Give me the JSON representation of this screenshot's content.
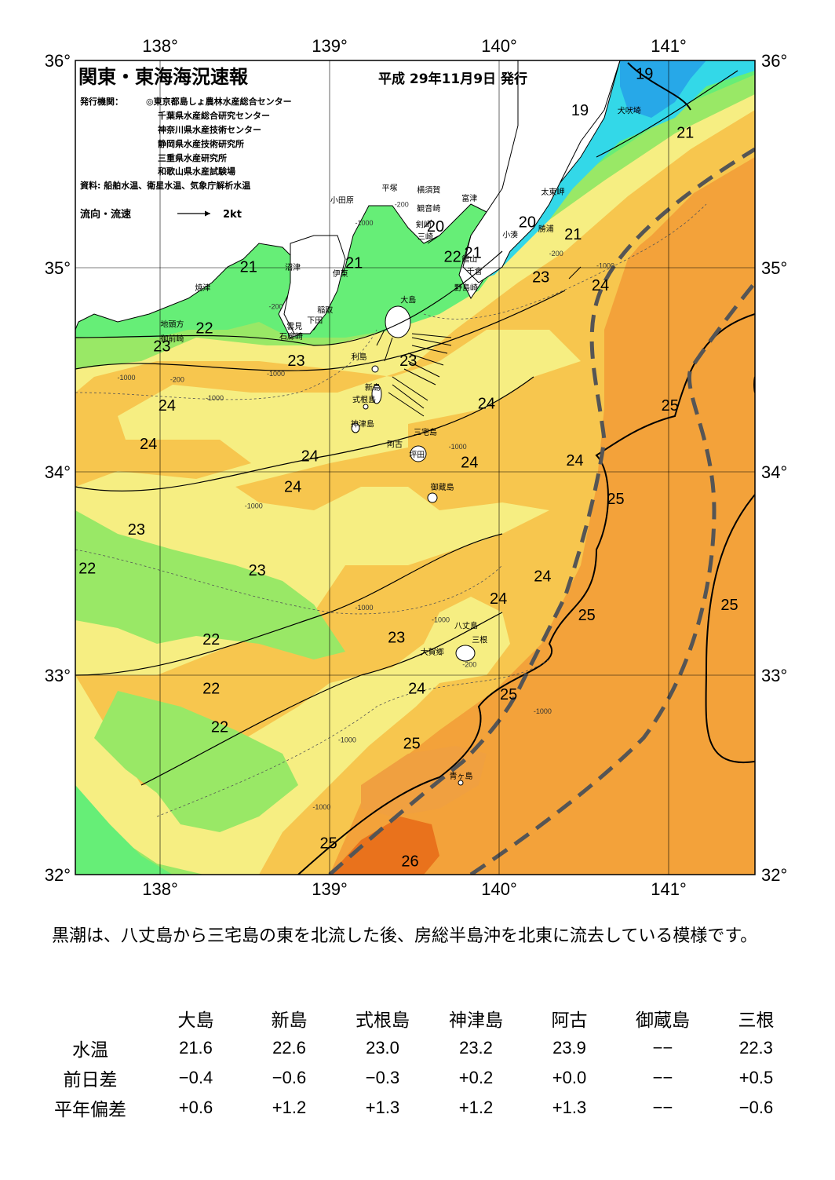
{
  "header": {
    "title": "関東・東海海況速報",
    "date": "平成 29年11月9日 発行",
    "issuer_label": "発行機関：",
    "issuers": [
      "◎東京都島しょ農林水産総合センター",
      "千葉県水産総合研究センター",
      "神奈川県水産技術センター",
      "静岡県水産技術研究所",
      "三重県水産研究所",
      "和歌山県水産試験場"
    ],
    "source": "資料: 船舶水温、衛星水温、気象庁解析水温",
    "legend_label": "流向・流速",
    "legend_speed": "2kt"
  },
  "axes": {
    "lon": [
      "138°",
      "139°",
      "140°",
      "141°"
    ],
    "lat": [
      "36°",
      "35°",
      "34°",
      "33°",
      "32°"
    ]
  },
  "isotherm_labels": [
    {
      "text": "19",
      "lon": 140.85,
      "lat": 35.91
    },
    {
      "text": "19",
      "lon": 140.47,
      "lat": 35.73
    },
    {
      "text": "21",
      "lon": 141.09,
      "lat": 35.62
    },
    {
      "text": "20",
      "lon": 139.62,
      "lat": 35.16
    },
    {
      "text": "20",
      "lon": 140.16,
      "lat": 35.18
    },
    {
      "text": "21",
      "lon": 140.43,
      "lat": 35.12
    },
    {
      "text": "22",
      "lon": 139.72,
      "lat": 35.01
    },
    {
      "text": "21",
      "lon": 139.84,
      "lat": 35.03
    },
    {
      "text": "21",
      "lon": 139.14,
      "lat": 34.98
    },
    {
      "text": "21",
      "lon": 138.52,
      "lat": 34.96
    },
    {
      "text": "23",
      "lon": 140.24,
      "lat": 34.91
    },
    {
      "text": "24",
      "lon": 140.59,
      "lat": 34.87
    },
    {
      "text": "22",
      "lon": 138.26,
      "lat": 34.66
    },
    {
      "text": "23",
      "lon": 138.01,
      "lat": 34.57
    },
    {
      "text": "23",
      "lon": 138.8,
      "lat": 34.5
    },
    {
      "text": "23",
      "lon": 139.46,
      "lat": 34.5
    },
    {
      "text": "24",
      "lon": 138.04,
      "lat": 34.28
    },
    {
      "text": "24",
      "lon": 139.92,
      "lat": 34.29
    },
    {
      "text": "25",
      "lon": 141.0,
      "lat": 34.28
    },
    {
      "text": "24",
      "lon": 137.93,
      "lat": 34.09
    },
    {
      "text": "24",
      "lon": 138.88,
      "lat": 34.03
    },
    {
      "text": "24",
      "lon": 139.82,
      "lat": 34.0
    },
    {
      "text": "24",
      "lon": 140.44,
      "lat": 34.01
    },
    {
      "text": "24",
      "lon": 138.78,
      "lat": 33.88
    },
    {
      "text": "25",
      "lon": 140.68,
      "lat": 33.82
    },
    {
      "text": "23",
      "lon": 137.86,
      "lat": 33.67
    },
    {
      "text": "22",
      "lon": 137.57,
      "lat": 33.48
    },
    {
      "text": "23",
      "lon": 138.57,
      "lat": 33.47
    },
    {
      "text": "24",
      "lon": 140.25,
      "lat": 33.44
    },
    {
      "text": "24",
      "lon": 139.99,
      "lat": 33.33
    },
    {
      "text": "25",
      "lon": 140.51,
      "lat": 33.25
    },
    {
      "text": "25",
      "lon": 141.35,
      "lat": 33.3
    },
    {
      "text": "23",
      "lon": 139.39,
      "lat": 33.14
    },
    {
      "text": "22",
      "lon": 138.3,
      "lat": 33.13
    },
    {
      "text": "22",
      "lon": 138.3,
      "lat": 32.89
    },
    {
      "text": "24",
      "lon": 139.51,
      "lat": 32.89
    },
    {
      "text": "25",
      "lon": 140.05,
      "lat": 32.86
    },
    {
      "text": "22",
      "lon": 138.35,
      "lat": 32.7
    },
    {
      "text": "25",
      "lon": 139.48,
      "lat": 32.62
    },
    {
      "text": "25",
      "lon": 138.99,
      "lat": 32.13
    },
    {
      "text": "26",
      "lon": 139.47,
      "lat": 32.04
    }
  ],
  "place_labels": [
    {
      "text": "犬吠埼",
      "lon": 140.76,
      "lat": 35.74
    },
    {
      "text": "太東岬",
      "lon": 140.31,
      "lat": 35.34
    },
    {
      "text": "勝浦",
      "lon": 140.27,
      "lat": 35.16
    },
    {
      "text": "小湊",
      "lon": 140.06,
      "lat": 35.13
    },
    {
      "text": "富津",
      "lon": 139.82,
      "lat": 35.31
    },
    {
      "text": "横須賀",
      "lon": 139.58,
      "lat": 35.35
    },
    {
      "text": "平塚",
      "lon": 139.35,
      "lat": 35.36
    },
    {
      "text": "小田原",
      "lon": 139.07,
      "lat": 35.3
    },
    {
      "text": "観音崎",
      "lon": 139.58,
      "lat": 35.26
    },
    {
      "text": "剣崎",
      "lon": 139.55,
      "lat": 35.18
    },
    {
      "text": "三崎",
      "lon": 139.56,
      "lat": 35.12
    },
    {
      "text": "館山",
      "lon": 139.82,
      "lat": 35.01
    },
    {
      "text": "千倉",
      "lon": 139.85,
      "lat": 34.95
    },
    {
      "text": "野島崎",
      "lon": 139.8,
      "lat": 34.87
    },
    {
      "text": "沼津",
      "lon": 138.78,
      "lat": 34.97
    },
    {
      "text": "伊東",
      "lon": 139.06,
      "lat": 34.94
    },
    {
      "text": "焼津",
      "lon": 138.25,
      "lat": 34.87
    },
    {
      "text": "稲取",
      "lon": 138.97,
      "lat": 34.76
    },
    {
      "text": "下田",
      "lon": 138.91,
      "lat": 34.71
    },
    {
      "text": "雲見",
      "lon": 138.79,
      "lat": 34.68
    },
    {
      "text": "石廊崎",
      "lon": 138.77,
      "lat": 34.63
    },
    {
      "text": "地頭方",
      "lon": 138.07,
      "lat": 34.69
    },
    {
      "text": "御前崎",
      "lon": 138.07,
      "lat": 34.62
    },
    {
      "text": "大島",
      "lon": 139.46,
      "lat": 34.81
    },
    {
      "text": "利島",
      "lon": 139.17,
      "lat": 34.53
    },
    {
      "text": "新島",
      "lon": 139.25,
      "lat": 34.38
    },
    {
      "text": "式根島",
      "lon": 139.2,
      "lat": 34.32
    },
    {
      "text": "神津島",
      "lon": 139.19,
      "lat": 34.2
    },
    {
      "text": "阿古",
      "lon": 139.38,
      "lat": 34.1
    },
    {
      "text": "三宅島",
      "lon": 139.56,
      "lat": 34.16
    },
    {
      "text": "坪田",
      "lon": 139.51,
      "lat": 34.05
    },
    {
      "text": "御蔵島",
      "lon": 139.66,
      "lat": 33.89
    },
    {
      "text": "八丈島",
      "lon": 139.8,
      "lat": 33.21
    },
    {
      "text": "三根",
      "lon": 139.88,
      "lat": 33.14
    },
    {
      "text": "大賀郷",
      "lon": 139.6,
      "lat": 33.08
    },
    {
      "text": "青ヶ島",
      "lon": 139.77,
      "lat": 32.47
    }
  ],
  "depth_labels": [
    {
      "text": "-200",
      "lon": 139.42,
      "lat": 35.28
    },
    {
      "text": "-1000",
      "lon": 139.2,
      "lat": 35.19
    },
    {
      "text": "-200",
      "lon": 140.33,
      "lat": 35.04
    },
    {
      "text": "-1000",
      "lon": 140.62,
      "lat": 34.98
    },
    {
      "text": "-200",
      "lon": 138.68,
      "lat": 34.78
    },
    {
      "text": "-1000",
      "lon": 138.68,
      "lat": 34.45
    },
    {
      "text": "-200",
      "lon": 138.1,
      "lat": 34.42
    },
    {
      "text": "-1000",
      "lon": 137.8,
      "lat": 34.43
    },
    {
      "text": "-1000",
      "lon": 138.32,
      "lat": 34.33
    },
    {
      "text": "-1000",
      "lon": 139.75,
      "lat": 34.09
    },
    {
      "text": "-1000",
      "lon": 138.55,
      "lat": 33.8
    },
    {
      "text": "-1000",
      "lon": 139.2,
      "lat": 33.3
    },
    {
      "text": "-1000",
      "lon": 139.65,
      "lat": 33.24
    },
    {
      "text": "-200",
      "lon": 139.82,
      "lat": 33.02
    },
    {
      "text": "-1000",
      "lon": 140.25,
      "lat": 32.79
    },
    {
      "text": "-1000",
      "lon": 139.1,
      "lat": 32.65
    },
    {
      "text": "-1000",
      "lon": 138.95,
      "lat": 32.32
    }
  ],
  "summary": "黒潮は、八丈島から三宅島の東を北流した後、房総半島沖を北東に流去している模様です。",
  "table": {
    "stations": [
      "大島",
      "新島",
      "式根島",
      "神津島",
      "阿古",
      "御蔵島",
      "三根"
    ],
    "rows": [
      {
        "label": "水温",
        "values": [
          "21.6",
          "22.6",
          "23.0",
          "23.2",
          "23.9",
          "−−",
          "22.3"
        ]
      },
      {
        "label": "前日差",
        "values": [
          "−0.4",
          "−0.6",
          "−0.3",
          "+0.2",
          "+0.0",
          "−−",
          "+0.5"
        ]
      },
      {
        "label": "平年偏差",
        "values": [
          "+0.6",
          "+1.2",
          "+1.3",
          "+1.2",
          "+1.3",
          "−−",
          "−0.6"
        ]
      }
    ]
  },
  "colors": {
    "t19": "#27a8e8",
    "t20": "#33d8e8",
    "t21": "#66ee77",
    "t22": "#99e866",
    "t23": "#f6ee82",
    "t24": "#f7c64e",
    "t25": "#f3a23a",
    "t26": "#e9721c",
    "land": "#ffffff",
    "kuroshio": "#555555"
  },
  "map_extent": {
    "lon_min": 137.5,
    "lon_max": 141.5,
    "lat_min": 32,
    "lat_max": 36
  }
}
